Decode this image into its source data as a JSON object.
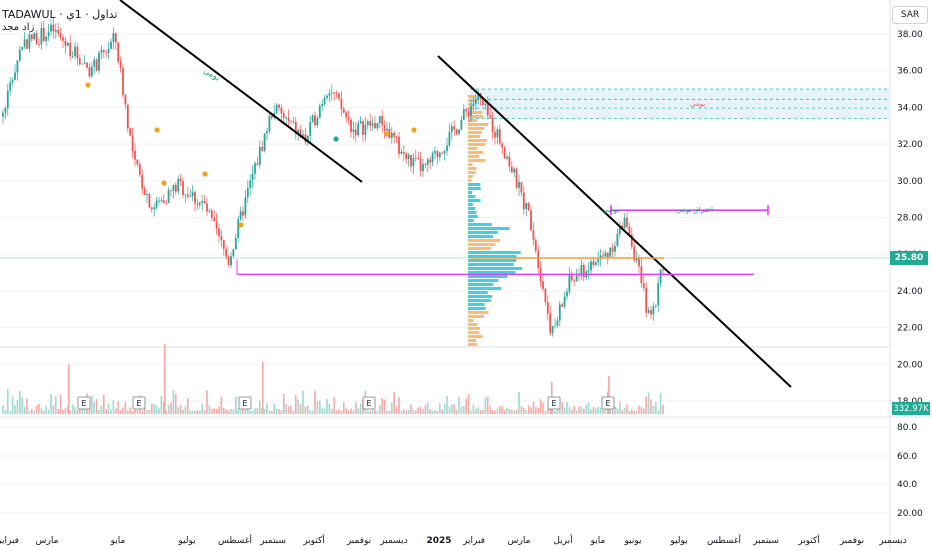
{
  "header": {
    "symbol": "TADAWUL",
    "timeframe": "1ي",
    "exchange": "تداول",
    "name": "زاد مجد"
  },
  "currency": "SAR",
  "last_price_label": "25.80",
  "volume_label": "332.97K",
  "colors": {
    "up": "#26a69a",
    "down": "#ef5350",
    "vp_up": "#26c6da",
    "vp_down": "#f7b060",
    "magenta": "#e040fb",
    "poc": "#f0a030"
  },
  "annotations": {
    "weekly_1": "يومي",
    "weekly_2": "يومي",
    "zone": "يومي",
    "daily_res": "اختراق يومي"
  },
  "earnings_marker": "E",
  "time_axis": [
    "فبراير",
    "مارس",
    "مايو",
    "يوليو",
    "أغسطس",
    "سبتمبر",
    "أكتوبر",
    "نوفمبر",
    "ديسمبر",
    "2025",
    "فبراير",
    "مارس",
    "أبريل",
    "مايو",
    "يونيو",
    "يوليو",
    "أغسطس",
    "سبتمبر",
    "أكتوبر",
    "نوفمبر",
    "ديسمبر"
  ],
  "price_ticks": [
    "38.00",
    "36.00",
    "34.00",
    "32.00",
    "30.00",
    "28.00",
    "26.00",
    "24.00",
    "22.00",
    "20.00",
    "18.00"
  ],
  "osc_ticks": [
    "80.0",
    "60.0",
    "40.0",
    "20.00"
  ],
  "chart_data": {
    "type": "candlestick",
    "title": "",
    "ylabel": "SAR",
    "ylim": [
      18,
      39
    ],
    "last_price": 25.8,
    "support_level": 24.9,
    "resistance_level": 28.4,
    "zone": [
      33.4,
      35.0
    ],
    "close_path": [
      {
        "x": "2024-01-20",
        "y": 33.5
      },
      {
        "x": "2024-02-05",
        "y": 37.5
      },
      {
        "x": "2024-03-01",
        "y": 38.2
      },
      {
        "x": "2024-04-01",
        "y": 36.0
      },
      {
        "x": "2024-04-20",
        "y": 37.8
      },
      {
        "x": "2024-05-05",
        "y": 31.0
      },
      {
        "x": "2024-05-20",
        "y": 28.5
      },
      {
        "x": "2024-06-10",
        "y": 29.8
      },
      {
        "x": "2024-07-01",
        "y": 28.6
      },
      {
        "x": "2024-07-20",
        "y": 25.6
      },
      {
        "x": "2024-08-05",
        "y": 29.5
      },
      {
        "x": "2024-08-25",
        "y": 34.0
      },
      {
        "x": "2024-09-20",
        "y": 32.2
      },
      {
        "x": "2024-10-08",
        "y": 35.2
      },
      {
        "x": "2024-10-28",
        "y": 32.8
      },
      {
        "x": "2024-11-20",
        "y": 33.2
      },
      {
        "x": "2024-12-10",
        "y": 31.2
      },
      {
        "x": "2024-12-25",
        "y": 30.6
      },
      {
        "x": "2025-01-15",
        "y": 32.5
      },
      {
        "x": "2025-02-05",
        "y": 34.6
      },
      {
        "x": "2025-02-25",
        "y": 32.0
      },
      {
        "x": "2025-03-20",
        "y": 27.8
      },
      {
        "x": "2025-04-06",
        "y": 21.6
      },
      {
        "x": "2025-04-20",
        "y": 24.5
      },
      {
        "x": "2025-05-20",
        "y": 26.0
      },
      {
        "x": "2025-06-05",
        "y": 27.9
      },
      {
        "x": "2025-06-18",
        "y": 24.0
      },
      {
        "x": "2025-06-24",
        "y": 22.2
      },
      {
        "x": "2025-07-05",
        "y": 25.8
      }
    ]
  }
}
